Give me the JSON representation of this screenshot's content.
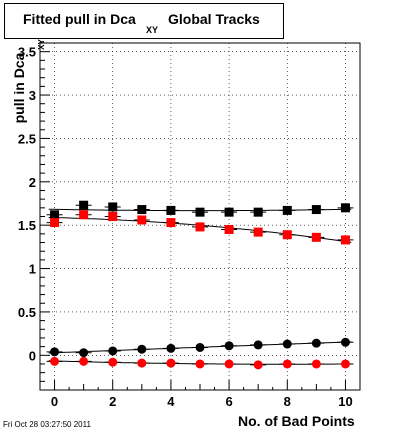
{
  "title": {
    "main": "Fitted pull in Dca",
    "sub": "XY",
    "tail": "Global Tracks"
  },
  "ylabel": {
    "main": "pull in Dca",
    "sub": "XY"
  },
  "timestamp": "Fri Oct 28 03:27:50 2011",
  "chart_data": {
    "type": "scatter",
    "xlabel": "No. of Bad Points",
    "ylabel": "pull in Dca XY",
    "xlim": [
      -0.5,
      10.5
    ],
    "ylim": [
      -0.4,
      3.6
    ],
    "xticks": [
      0,
      2,
      4,
      6,
      8,
      10
    ],
    "yticks": [
      0,
      0.5,
      1,
      1.5,
      2,
      2.5,
      3,
      3.5
    ],
    "yticklabels": [
      "0",
      "0.5",
      "1",
      "1.5",
      "2",
      "2.5",
      "3",
      "3.5"
    ],
    "grid": true,
    "x": [
      0,
      1,
      2,
      3,
      4,
      5,
      6,
      7,
      8,
      9,
      10
    ],
    "series": [
      {
        "marker": "square",
        "color": "#000000",
        "values": [
          1.62,
          1.73,
          1.71,
          1.68,
          1.67,
          1.65,
          1.65,
          1.65,
          1.67,
          1.68,
          1.7
        ]
      },
      {
        "marker": "square",
        "color": "#ff0000",
        "values": [
          1.53,
          1.62,
          1.6,
          1.56,
          1.53,
          1.48,
          1.45,
          1.42,
          1.39,
          1.36,
          1.33
        ]
      },
      {
        "marker": "circle",
        "color": "#000000",
        "values": [
          0.04,
          0.03,
          0.05,
          0.07,
          0.08,
          0.09,
          0.11,
          0.12,
          0.13,
          0.14,
          0.15
        ]
      },
      {
        "marker": "circle",
        "color": "#ff0000",
        "values": [
          -0.07,
          -0.07,
          -0.08,
          -0.09,
          -0.09,
          -0.1,
          -0.1,
          -0.11,
          -0.1,
          -0.1,
          -0.1
        ]
      }
    ]
  }
}
